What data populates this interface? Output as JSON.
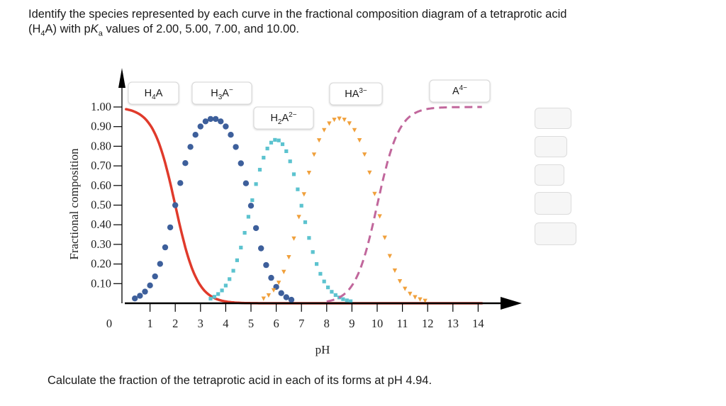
{
  "question": {
    "line1": "Identify the species represented by each curve in the fractional composition diagram of a tetraprotic acid",
    "line2_prefix": "(H",
    "line2_sub4": "4",
    "line2_mid": "A) with p",
    "line2_K": "K",
    "line2_suba": "a",
    "line2_suffix": " values of 2.00, 5.00, 7.00, and 10.00."
  },
  "chart_data": {
    "type": "line",
    "ylabel": "Fractional composition",
    "xlabel": "pH",
    "xlim": [
      0,
      14.7
    ],
    "ylim": [
      0,
      1.0
    ],
    "x_ticks": [
      "0",
      "1",
      "2",
      "3",
      "4",
      "5",
      "6",
      "7",
      "8",
      "9",
      "10",
      "11",
      "12",
      "13",
      "14"
    ],
    "y_ticks": [
      "1.00",
      "0.90",
      "0.80",
      "0.70",
      "0.60",
      "0.50",
      "0.40",
      "0.30",
      "0.20",
      "0.10"
    ],
    "pKa": [
      2.0,
      5.0,
      7.0,
      10.0
    ],
    "series": [
      {
        "name": "H4A",
        "style": "solid",
        "color": "#e03a2b"
      },
      {
        "name": "H3A-",
        "style": "dots",
        "color": "#3d5f9b"
      },
      {
        "name": "H2A2-",
        "style": "squares",
        "color": "#5cc3cf"
      },
      {
        "name": "HA3-",
        "style": "triangles",
        "color": "#f0a03c"
      },
      {
        "name": "A4-",
        "style": "dashed",
        "color": "#c1679c"
      }
    ],
    "labels": {
      "h4a": {
        "main": "H",
        "sub": "4",
        "tail": "A",
        "sup": ""
      },
      "h3a": {
        "main": "H",
        "sub": "3",
        "tail": "A",
        "sup": "−"
      },
      "h2a": {
        "main": "H",
        "sub": "2",
        "tail": "A",
        "sup": "2−"
      },
      "ha": {
        "main": "HA",
        "sub": "",
        "tail": "",
        "sup": "3−"
      },
      "a": {
        "main": "A",
        "sub": "",
        "tail": "",
        "sup": "4−"
      }
    }
  },
  "footer": {
    "text": "Calculate the fraction of the tetraprotic acid in each of its forms at pH 4.94."
  }
}
